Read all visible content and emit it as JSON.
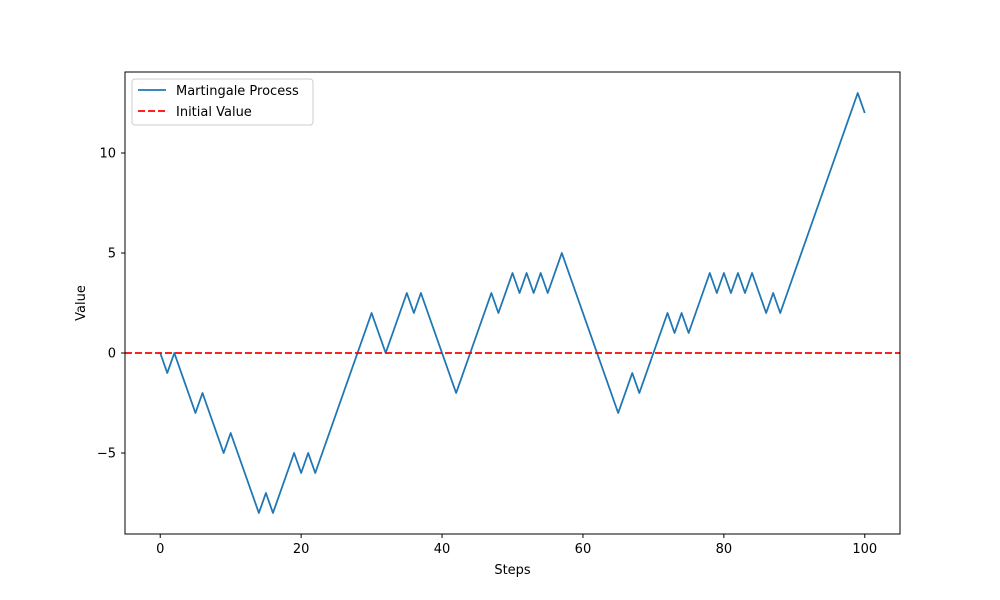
{
  "chart_data": {
    "type": "line",
    "title": "",
    "xlabel": "Steps",
    "ylabel": "Value",
    "xlim": [
      -5,
      105
    ],
    "ylim": [
      -9.05,
      14.05
    ],
    "xticks": [
      0,
      20,
      40,
      60,
      80,
      100
    ],
    "yticks": [
      -5,
      0,
      5,
      10
    ],
    "ytick_labels": [
      "−5",
      "0",
      "5",
      "10"
    ],
    "grid": false,
    "legend_location": "upper left",
    "series": [
      {
        "name": "Martingale Process",
        "color": "#1f77b4",
        "style": "solid",
        "x": [
          0,
          1,
          2,
          3,
          4,
          5,
          6,
          7,
          8,
          9,
          10,
          11,
          12,
          13,
          14,
          15,
          16,
          17,
          18,
          19,
          20,
          21,
          22,
          23,
          24,
          25,
          26,
          27,
          28,
          29,
          30,
          31,
          32,
          33,
          34,
          35,
          36,
          37,
          38,
          39,
          40,
          41,
          42,
          43,
          44,
          45,
          46,
          47,
          48,
          49,
          50,
          51,
          52,
          53,
          54,
          55,
          56,
          57,
          58,
          59,
          60,
          61,
          62,
          63,
          64,
          65,
          66,
          67,
          68,
          69,
          70,
          71,
          72,
          73,
          74,
          75,
          76,
          77,
          78,
          79,
          80,
          81,
          82,
          83,
          84,
          85,
          86,
          87,
          88,
          89,
          90,
          91,
          92,
          93,
          94,
          95,
          96,
          97,
          98,
          99,
          100
        ],
        "values": [
          0,
          -1,
          0,
          -1,
          -2,
          -3,
          -2,
          -3,
          -4,
          -5,
          -4,
          -5,
          -6,
          -7,
          -8,
          -7,
          -8,
          -7,
          -6,
          -5,
          -6,
          -5,
          -6,
          -5,
          -4,
          -3,
          -2,
          -1,
          0,
          1,
          2,
          1,
          0,
          1,
          2,
          3,
          2,
          3,
          2,
          1,
          0,
          -1,
          -2,
          -1,
          0,
          1,
          2,
          3,
          2,
          3,
          4,
          3,
          4,
          3,
          4,
          3,
          4,
          5,
          4,
          3,
          2,
          1,
          0,
          -1,
          -2,
          -3,
          -2,
          -1,
          -2,
          -1,
          0,
          1,
          2,
          1,
          2,
          1,
          2,
          3,
          4,
          3,
          4,
          3,
          4,
          3,
          4,
          3,
          2,
          3,
          2,
          3,
          4,
          5,
          6,
          7,
          8,
          9,
          10,
          11,
          12,
          13,
          12
        ]
      },
      {
        "name": "Initial Value",
        "color": "#ff0000",
        "style": "dashed",
        "type": "hline",
        "y": 0
      }
    ]
  }
}
